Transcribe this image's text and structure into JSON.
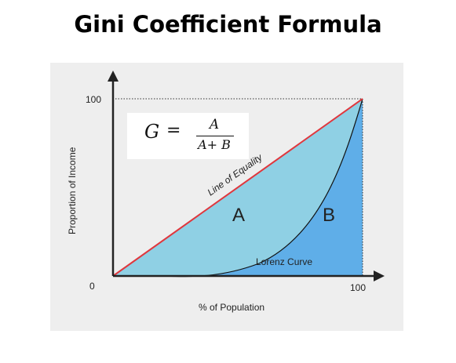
{
  "title": "Gini Coefficient Formula",
  "formula": {
    "lhs": "G",
    "equals": "=",
    "numerator": "A",
    "denominator": "A+ B"
  },
  "axes": {
    "y_label": "Proportion of Income",
    "x_label": "% of Population",
    "y_max_label": "100",
    "origin_label": "0",
    "x_max_label": "100"
  },
  "curves": {
    "equality_label": "Line of Equality",
    "lorenz_label": "Lorenz Curve"
  },
  "regions": {
    "a_label": "A",
    "b_label": "B"
  },
  "colors": {
    "region_a": "#8fd0e4",
    "region_b": "#5faee8",
    "equality_line": "#e0373d",
    "lorenz_line": "#111111",
    "panel_bg": "#eeeeee"
  }
}
